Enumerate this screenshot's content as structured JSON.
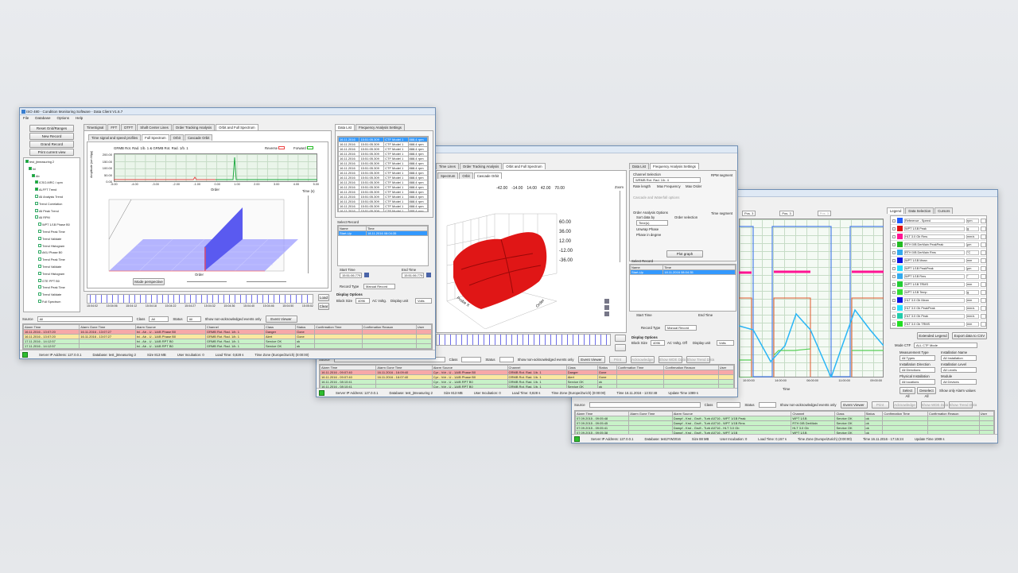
{
  "win3": {
    "title": "",
    "plot_ctrl": [
      "Pos. 3",
      "Pos. 3",
      "Pos. 3"
    ],
    "xlabel": "Time",
    "xticks": [
      "10:00:00",
      "14:00:00",
      "06:00:00",
      "11:00:00",
      "09:00:00"
    ],
    "tabs": [
      "Legend",
      "Data Selection",
      "Cursors"
    ],
    "legend": [
      {
        "name": "Reference - Speed",
        "unit": "rpm",
        "color": "#1e5bff"
      },
      {
        "name": "WPT 1/1B Peak",
        "unit": "g",
        "color": "#e01010"
      },
      {
        "name": "HLT 3.0 Gb Rms",
        "unit": "mm/s",
        "color": "#ff1493"
      },
      {
        "name": "RTH 0/B DerMain PeakPeak",
        "unit": "µm",
        "color": "#22bb22"
      },
      {
        "name": "RTH 0/B DerMain Rms",
        "unit": "°C",
        "color": "#33aaee"
      },
      {
        "name": "WPT 1/1B Mean",
        "unit": "mm",
        "color": "#0a10e0"
      },
      {
        "name": "WPT 1/1B PeakPeak",
        "unit": "µm",
        "color": "#22e0ff"
      },
      {
        "name": "WPT 1/1B Rms",
        "unit": "°",
        "color": "#33aaee"
      },
      {
        "name": "WPT 1/1B TRMS",
        "unit": "mm",
        "color": "#22cc33"
      },
      {
        "name": "WPT 1/1B Temp",
        "unit": "g",
        "color": "#33dd33"
      },
      {
        "name": "HLT 3.0 Gb Mean",
        "unit": "mm",
        "color": "#0a10e0"
      },
      {
        "name": "HLT 3.0 Gb PeakPeak",
        "unit": "mm/s",
        "color": "#22e0ff"
      },
      {
        "name": "HLT 3.0 Gb Peak",
        "unit": "mm/s",
        "color": "#22ccaa"
      },
      {
        "name": "HLT 3.0 Gb TRMS",
        "unit": "mm",
        "color": "#22dd22"
      }
    ],
    "extended_legend": "Extended Legend",
    "export": "Export data to CSV",
    "mode_label": "Mode CTF",
    "mode_value": "ALL CTF Mode",
    "meas_type": "Measurement Type",
    "meas_val": "All Types",
    "inst_name": "Installation Name",
    "inst_val": "All Installation",
    "inst_dir": "Installation Direction",
    "inst_dir_val": "All Directions",
    "inst_level": "Installation Level",
    "inst_level_val": "All Levels",
    "phys": "Physical Installation",
    "phys_val": "All locations",
    "module": "Module",
    "module_val": "All Devices",
    "select_all": "Select All",
    "deselect_all": "Deselect All",
    "alarm_only": "Show only Alarm values",
    "filter": {
      "source": "Source",
      "class": "Class",
      "status": "Status",
      "show_unack": "Show non-acknowledged events only",
      "event_viewer": "Event Viewer",
      "btns": [
        "Print",
        "Acknowledge",
        "Show WDE Data",
        "Show Trend Data"
      ]
    },
    "events": {
      "headers": [
        "Alarm Time",
        "Alarm Gone Time",
        "Alarm Source",
        "Channel",
        "Class",
        "Status",
        "Confirmation Time",
        "Confirmation Reason",
        "User"
      ],
      "rows": [
        {
          "c": [
            "07.09.2015 - 09:05:48",
            "",
            "Dampf - Krst - Gruft - Turb A0716 - WPT 1/1B Peak",
            "WPT 1/1B",
            "Service OK",
            "ok",
            "",
            "",
            ""
          ],
          "t": "grn"
        },
        {
          "c": [
            "07.09.2015 - 09:05:45",
            "",
            "Dampf - Krst - Gruft - Turb A0716 - WPT 1/1B Rms",
            "RTH 0/B DerMain",
            "Service OK",
            "ok",
            "",
            "",
            ""
          ],
          "t": "grn"
        },
        {
          "c": [
            "07.09.2015 - 09:05:41",
            "",
            "Dampf - Krst - Gruft - Turb A0716 - HLT 3.0 Gb",
            "HLT 3.0 Gb",
            "Service OK",
            "ok",
            "",
            "",
            ""
          ],
          "t": "grn"
        },
        {
          "c": [
            "07.09.2015 - 09:05:38",
            "",
            "Dampf - Krst - Gruft - Turb A0716 - WPT 1/1B",
            "WPT 1/1B",
            "Service OK",
            "ok",
            "",
            "",
            ""
          ],
          "t": "grn"
        }
      ]
    },
    "status": {
      "server": "Server IP Address: 127.0.0.1",
      "db": "Database: test2YW2016",
      "size": "Size 88 MB",
      "users": "User Incubation: 0",
      "load": "Load Time: 0,157 s",
      "tz": "Time Zone (Europe/Zurich) (0:00:00)",
      "time": "Time 16.11.2016 - 17:15:24",
      "update": "Update Time 1089 s"
    }
  },
  "win2": {
    "tabs": [
      "Time Lines",
      "Order Tracking Analysis",
      "Orbit and Full Spectrum"
    ],
    "subtabs": [
      "Spectrum",
      "Orbit",
      "Cascade Orbit"
    ],
    "axis_ticks": [
      "60.00",
      "36.00",
      "12.00",
      "-12.00",
      "-36.00"
    ],
    "top_ticks": [
      "-42.00",
      "-14.00",
      "14.00",
      "42.00",
      "70.00"
    ],
    "probe_x": "Probe X",
    "order": "Order",
    "zoom": "Zoom",
    "right_tabs": [
      "Data List",
      "Frequency Analysis Settings"
    ],
    "channel_sel": "Channel Selection",
    "channel_val": "WRMB Rot. Rad. 1/b. 4",
    "rate": "Rate length",
    "max_freq": "Max Frequency",
    "max_order": "Max Order",
    "cascade": "Cascade and Waterfall options",
    "order_opts": "Order Analysis Options",
    "sort": "Sort data by",
    "sort_val": "Time(s)",
    "order_sel": "Order selection",
    "phase": "Unwrap Phase",
    "deg": "Phase in degree",
    "plot_graph": "Plot graph",
    "rpm_seg": "RPM segment",
    "time_seg": "Time segment",
    "select_record": "Select Record",
    "name": "Name",
    "time": "Time",
    "record": {
      "name": "Start-Up",
      "time": "18.11.2016 08:04:35"
    },
    "start_time": "Start Time",
    "end_time": "End Time",
    "record_type": "Record Type",
    "record_type_val": "Manual Record",
    "display": "Display Options",
    "block": "Block Size",
    "block_val": "4096",
    "ac": "AC Voltg. Off",
    "unit": "Display unit",
    "unit_val": "Volts",
    "filter": {
      "source": "Source",
      "class": "Class",
      "status": "Status",
      "show_unack": "Show non-acknowledged events only",
      "event_viewer": "Event Viewer",
      "btns": [
        "Print",
        "Acknowledge",
        "Show WDE Data",
        "Show Trend Data"
      ]
    },
    "events": {
      "headers": [
        "Alarm Time",
        "Alarm Gone Time",
        "Alarm Source",
        "Channel",
        "Class",
        "Status",
        "Confirmation Time",
        "Confirmation Reason",
        "User"
      ],
      "rows": [
        {
          "c": [
            "16.11.2016 - 09:07:40",
            "16.11.2016 - 16:09:40",
            "Cpr - Vdr - U - 1A/B Phase B0",
            "GRMB Rot. Rad. 1/b. 1",
            "Danger",
            "Gone",
            "",
            "",
            ""
          ],
          "t": "red"
        },
        {
          "c": [
            "16.11.2016 - 09:07:40",
            "16.11.2016 - 16:07:40",
            "Cpr - Vdr - U - 1A/B Phase B0",
            "GRMB Rot. Rad. 1/b. 1",
            "Alert",
            "Gone",
            "",
            "",
            ""
          ],
          "t": "yel"
        },
        {
          "c": [
            "16.11.2016 - 08:10:41",
            "",
            "Cpr - Vdr - U - 1A/B RPT B0",
            "GRMB Rot. Rad. 1/b. 1",
            "Service OK",
            "ok",
            "",
            "",
            ""
          ],
          "t": "grn"
        },
        {
          "c": [
            "16.11.2016 - 08:10:41",
            "",
            "Cpr - Vdr - U - 1A/B RPT B0",
            "GRMB Rot. Rad. 1/b. 1",
            "Service OK",
            "ok",
            "",
            "",
            ""
          ],
          "t": "grn"
        }
      ]
    },
    "status": {
      "server": "Server IP Address: 127.0.0.1",
      "db": "Database: test_jtmeasuring 2",
      "size": "Size 813 MB",
      "users": "User Incubation: 0",
      "load": "Load Time: 0,828 s",
      "tz": "Time Zone (Europe/Zurich) (0:00:00)",
      "time": "Time 16.11.2016 - 13:02:48",
      "update": "Update Time 1089 s"
    }
  },
  "win1": {
    "title": "ISO 480 - Condition Monitoring Software - Data Client V1.6.7",
    "menu": [
      "File",
      "Database",
      "Options",
      "Help"
    ],
    "left_buttons": [
      "Reset Grid/Ranges",
      "New Record",
      "Grand Record",
      "Print current view"
    ],
    "tree": [
      "test_jtmeasuring 2",
      "Ini",
      "Ab",
      "ICSO-MRC / opm",
      "ALFFT Trend",
      "All Analysis Trend",
      "Trend Correlation",
      "All Peak Trend",
      "All RPM",
      "WPT 1/1B Phase B0",
      "Trend Peak Time",
      "Trend Validate",
      "Trend Histogram",
      "AKU Phase B0",
      "Trend Peak Time",
      "Trend Validate",
      "Trend Histogram",
      "GTE PPT B0",
      "Trend Peak Time",
      "Trend Validate",
      "Full Spectrum"
    ],
    "tabs": [
      "TimeSignal",
      "FFT",
      "DTFT",
      "Shaft Center Lines",
      "Order Tracking Analysis",
      "Orbit and Full Spectrum"
    ],
    "subtabs": [
      "Time signal and speed profiles",
      "Full Spectrum",
      "Orbit",
      "Cascade Orbit"
    ],
    "chart_title": "GRMB Rot. Rad. 1/b. 1 & GRMB Rot. Rad. 1/b. 1",
    "legend_rev": "Reverse",
    "legend_fwd": "Forward",
    "ylabel": "Amplitude (um Mpp)",
    "xlabel": "Order",
    "yticks": [
      "200.00",
      "150.00",
      "100.00",
      "50.00",
      "0.00"
    ],
    "xticks": [
      "-5.00",
      "-4.00",
      "-3.00",
      "-2.00",
      "-1.00",
      "0.00",
      "1.00",
      "2.00",
      "3.00",
      "4.00",
      "5.00"
    ],
    "wf_xlabel": "Order",
    "wf_ylabel": "Amplitude",
    "time_label": "Time (s)",
    "mode_btn": "Mode perspective",
    "timeline_btns": [
      "Load",
      "Clear"
    ],
    "timeline_ticks": [
      "15:04:02",
      "15:04:06",
      "15:04:12",
      "15:04:18",
      "15:04:22",
      "15:04:27",
      "15:04:32",
      "15:04:36",
      "15:04:40",
      "15:04:46",
      "15:04:50",
      "15:05:02"
    ],
    "right_tabs": [
      "Data List",
      "Frequency Analysis Settings"
    ],
    "data_list": [
      "16.11.2016",
      "16.11.2016",
      "16.11.2016",
      "16.11.2016",
      "16.11.2016",
      "16.11.2016",
      "16.11.2016",
      "16.11.2016",
      "16.11.2016",
      "16.11.2016",
      "16.11.2016",
      "16.11.2016",
      "16.11.2016",
      "16.11.2016",
      "16.11.2016",
      "16.11.2016"
    ],
    "data_list_col2": "15:51:05.309",
    "data_list_col3": "CTF Model 1",
    "data_list_col4": "888.4 rpm",
    "select_record": "Select Record",
    "name": "Name",
    "time": "Time",
    "record": {
      "name": "Start-Up",
      "time": "18.11.2016 08:04:35"
    },
    "start_time": "Start Time",
    "end_time": "End Time",
    "start_val": "15:51:06.779",
    "end_val": "15:51:06.779",
    "record_type": "Record Type",
    "record_type_val": "Manual Record",
    "display": "Display Options",
    "block": "Block Size",
    "block_val": "4096",
    "ac": "AC Voltg.",
    "unit": "Display unit",
    "unit_val": "Volts",
    "filter": {
      "source": "Source",
      "class": "Class",
      "status": "Status",
      "all": "All",
      "show_unack": "Show non-acknowledged events only",
      "event_viewer": "Event Viewer"
    },
    "events": {
      "headers": [
        "Alarm Time",
        "Alarm Gone Time",
        "Alarm Source",
        "Channel",
        "Class",
        "Status",
        "Confirmation Time",
        "Confirmation Reason",
        "User"
      ],
      "rows": [
        {
          "c": [
            "16.11.2016 - 13:07:20",
            "16.11.2016 - 13:07:27",
            "Ini - Ab - U - 1A/B Phase B0",
            "GRMB Rot. Rad. 1/b. 1",
            "Danger",
            "Gone",
            "",
            "",
            ""
          ],
          "t": "red"
        },
        {
          "c": [
            "16.11.2016 - 13:07:20",
            "16.11.2016 - 13:07:27",
            "Ini - Ab - U - 1A/B Phase B0",
            "GRMB Rot. Rad. 1/b. 1",
            "Alert",
            "Gone",
            "",
            "",
            ""
          ],
          "t": "yel"
        },
        {
          "c": [
            "17.11.2016 - 14:12:57",
            "",
            "Ini - Ab - U - 1A/B RPT B0",
            "GRMB Rot. Rad. 1/b. 1",
            "Service OK",
            "ok",
            "",
            "",
            ""
          ],
          "t": "grn"
        },
        {
          "c": [
            "17.11.2016 - 14:12:57",
            "",
            "Ini - Ab - U - 1A/B RPT B0",
            "GRMB Rot. Rad. 1/b. 1",
            "Service OK",
            "ok",
            "",
            "",
            ""
          ],
          "t": "grn"
        }
      ]
    },
    "status": {
      "server": "Server IP Address: 127.0.0.1",
      "db": "Database: test_jtmeasuring 2",
      "size": "Size 813 MB",
      "users": "User Incubation: 0",
      "load": "Load Time: 0,828 s",
      "tz": "Time Zone (Europe/Zurich) (0:00:00)"
    }
  }
}
